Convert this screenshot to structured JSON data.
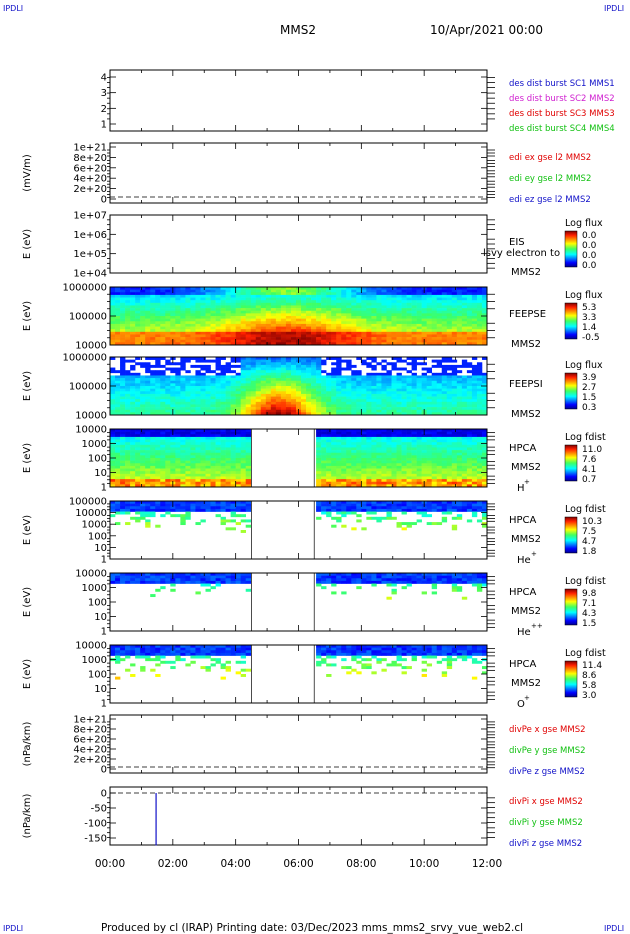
{
  "header": {
    "corner_left": "IPDLI",
    "corner_right": "IPDLI",
    "title": "MMS2",
    "datetime": "10/Apr/2021 00:00"
  },
  "footer": {
    "corner_left": "IPDLI",
    "corner_right": "IPDLI",
    "text": "Produced by cl (IRAP)    Printing date: 03/Dec/2023    mms_mms2_srvy_vue_web2.cl"
  },
  "colors": {
    "black": "#000000",
    "blue": "#1010c8",
    "magenta": "#d020d0",
    "red": "#e00000",
    "green": "#10c010",
    "dark_red": "#8b0000"
  },
  "chart_data": [
    {
      "type": "line",
      "panel": "p1",
      "ylabel": "",
      "yticks": [
        "1",
        "2",
        "3",
        "4"
      ],
      "ylim": [
        0.7,
        4.4
      ],
      "legend": [
        {
          "text": "des dist burst SC1 MMS1",
          "color": "#1010c8"
        },
        {
          "text": "des dist burst SC2 MMS2",
          "color": "#d020d0"
        },
        {
          "text": "des dist burst SC3 MMS3",
          "color": "#e00000"
        },
        {
          "text": "des dist burst SC4 MMS4",
          "color": "#10c010"
        }
      ],
      "series": []
    },
    {
      "type": "line",
      "panel": "p2",
      "ylabel": "(mV/m)",
      "yticks": [
        "1e+21",
        "8e+20",
        "6e+20",
        "4e+20",
        "2e+20",
        "0"
      ],
      "legend": [
        {
          "text": "edi ex gse l2 MMS2",
          "color": "#e00000"
        },
        {
          "text": "edi ey gse l2 MMS2",
          "color": "#10c010"
        },
        {
          "text": "edi ez gse l2 MMS2",
          "color": "#1010c8"
        }
      ],
      "series": []
    },
    {
      "type": "heatmap",
      "panel": "p3",
      "ylabel": "E (eV)",
      "yticks": [
        "1e+07",
        "1e+06",
        "1e+05",
        "1e+04"
      ],
      "labels": [
        "EIS",
        "MMS2"
      ],
      "overlay_text": "lsvy electron to",
      "colorbar": {
        "title": "Log flux",
        "ticks": [
          "0.0",
          "0.0",
          "0.0",
          "0.0"
        ]
      }
    },
    {
      "type": "heatmap",
      "panel": "p4",
      "ylabel": "E (eV)",
      "yticks": [
        "1000000",
        "100000",
        "10000"
      ],
      "labels": [
        "FEEPSE",
        "MMS2"
      ],
      "colorbar": {
        "title": "Log flux",
        "ticks": [
          "5.3",
          "3.3",
          "1.4",
          "-0.5"
        ]
      }
    },
    {
      "type": "heatmap",
      "panel": "p5",
      "ylabel": "E (eV)",
      "yticks": [
        "1000000",
        "100000",
        "10000"
      ],
      "labels": [
        "FEEPSI",
        "MMS2"
      ],
      "colorbar": {
        "title": "Log flux",
        "ticks": [
          "3.9",
          "2.7",
          "1.5",
          "0.3"
        ]
      }
    },
    {
      "type": "heatmap",
      "panel": "p6",
      "ylabel": "E (eV)",
      "yticks": [
        "10000",
        "1000",
        "100",
        "10",
        "1"
      ],
      "labels": [
        "HPCA",
        "MMS2"
      ],
      "species": "H",
      "species_sup": "+",
      "colorbar": {
        "title": "Log fdist",
        "ticks": [
          "11.0",
          "7.6",
          "4.1",
          "0.7"
        ]
      },
      "data_gap": [
        "04:30",
        "06:30"
      ]
    },
    {
      "type": "heatmap",
      "panel": "p7",
      "ylabel": "E (eV)",
      "yticks": [
        "100000",
        "10000",
        "1000",
        "100",
        "10",
        "1"
      ],
      "labels": [
        "HPCA",
        "MMS2"
      ],
      "species": "He",
      "species_sup": "+",
      "colorbar": {
        "title": "Log fdist",
        "ticks": [
          "10.3",
          "7.5",
          "4.7",
          "1.8"
        ]
      },
      "data_gap": [
        "04:30",
        "06:30"
      ]
    },
    {
      "type": "heatmap",
      "panel": "p8",
      "ylabel": "E (eV)",
      "yticks": [
        "10000",
        "1000",
        "100",
        "10",
        "1"
      ],
      "labels": [
        "HPCA",
        "MMS2"
      ],
      "species": "He",
      "species_sup": "++",
      "colorbar": {
        "title": "Log fdist",
        "ticks": [
          "9.8",
          "7.1",
          "4.3",
          "1.5"
        ]
      },
      "data_gap": [
        "04:30",
        "06:30"
      ]
    },
    {
      "type": "heatmap",
      "panel": "p9",
      "ylabel": "E (eV)",
      "yticks": [
        "10000",
        "1000",
        "100",
        "10",
        "1"
      ],
      "labels": [
        "HPCA",
        "MMS2"
      ],
      "species": "O",
      "species_sup": "+",
      "colorbar": {
        "title": "Log fdist",
        "ticks": [
          "11.4",
          "8.6",
          "5.8",
          "3.0"
        ]
      },
      "data_gap": [
        "04:30",
        "06:30"
      ]
    },
    {
      "type": "line",
      "panel": "p10",
      "ylabel": "(nPa/km)",
      "yticks": [
        "1e+21",
        "8e+20",
        "6e+20",
        "4e+20",
        "2e+20",
        "0"
      ],
      "legend": [
        {
          "text": "divPe x gse MMS2",
          "color": "#e00000"
        },
        {
          "text": "divPe y gse MMS2",
          "color": "#10c010"
        },
        {
          "text": "divPe z gse MMS2",
          "color": "#1010c8"
        }
      ],
      "series": []
    },
    {
      "type": "line",
      "panel": "p11",
      "ylabel": "(nPa/km)",
      "yticks": [
        "0",
        "-50",
        "-100",
        "-150"
      ],
      "ylim": [
        -180,
        10
      ],
      "legend": [
        {
          "text": "divPi x gse MMS2",
          "color": "#e00000"
        },
        {
          "text": "divPi y gse MMS2",
          "color": "#10c010"
        },
        {
          "text": "divPi z gse MMS2",
          "color": "#1010c8"
        }
      ],
      "series": [
        {
          "name": "divPi z gse MMS2",
          "color": "#1010c8",
          "x": [
            "01:28",
            "01:28"
          ],
          "values": [
            0,
            -175
          ]
        }
      ]
    }
  ],
  "xaxis": {
    "ticks": [
      "00:00",
      "02:00",
      "04:00",
      "06:00",
      "08:00",
      "10:00",
      "12:00"
    ],
    "range_hours": [
      0,
      12
    ]
  }
}
